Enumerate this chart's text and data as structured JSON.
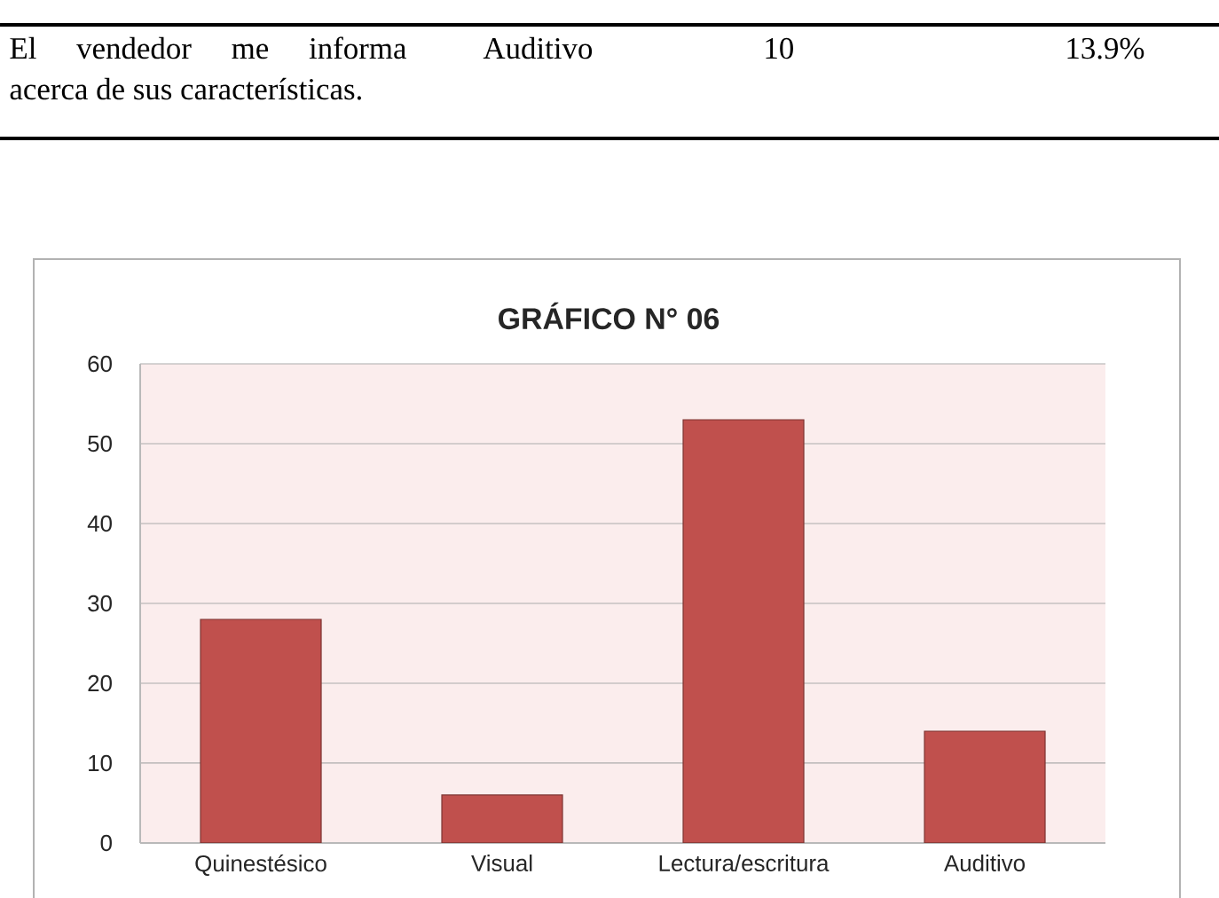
{
  "chart_data": {
    "type": "bar",
    "title": "GRÁFICO N° 06",
    "categories": [
      "Quinestésico",
      "Visual",
      "Lectura/escritura",
      "Auditivo"
    ],
    "values": [
      28,
      6,
      53,
      14
    ],
    "color": "#c0504d",
    "ylim": [
      0,
      60
    ],
    "yticks": [
      0,
      10,
      20,
      30,
      40,
      50,
      60
    ],
    "grid": "y",
    "annotations": [
      "El vendedor me informa",
      "acerca de sus características.",
      "Auditivo",
      "10",
      "13.9%"
    ]
  }
}
